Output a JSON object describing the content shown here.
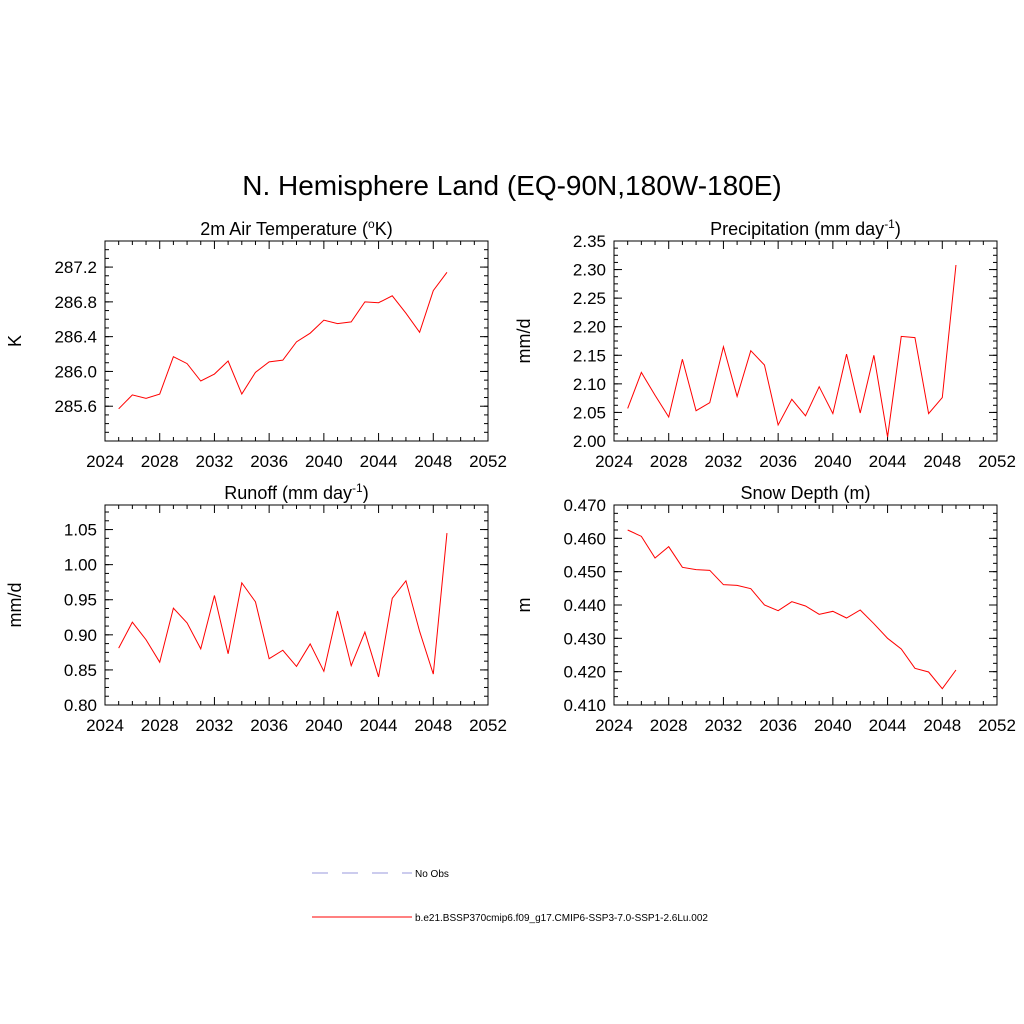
{
  "figure": {
    "title": "N. Hemisphere Land (EQ-90N,180W-180E)"
  },
  "legend": [
    {
      "label": "No Obs",
      "color": "#9999dd",
      "style": "dashed"
    },
    {
      "label": "b.e21.BSSP370cmip6.f09_g17.CMIP6-SSP3-7.0-SSP1-2.6Lu.002",
      "color": "#ff0000",
      "style": "solid"
    }
  ],
  "chart_data": [
    {
      "type": "line",
      "title": "2m Air Temperature (",
      "title_sup": "o",
      "title_after": "K)",
      "ylabel": "K",
      "xlim": [
        2024,
        2052
      ],
      "ylim": [
        285.2,
        287.5
      ],
      "xticks": [
        2024,
        2028,
        2032,
        2036,
        2040,
        2044,
        2048,
        2052
      ],
      "yticks": [
        285.6,
        286.0,
        286.4,
        286.8,
        287.2
      ],
      "ytick_labels": [
        "285.6",
        "286.0",
        "286.4",
        "286.8",
        "287.2"
      ],
      "x": [
        2025,
        2026,
        2027,
        2028,
        2029,
        2030,
        2031,
        2032,
        2033,
        2034,
        2035,
        2036,
        2037,
        2038,
        2039,
        2040,
        2041,
        2042,
        2043,
        2044,
        2045,
        2046,
        2047,
        2048,
        2049
      ],
      "series": [
        {
          "color": "#ff0000",
          "values": [
            285.57,
            285.73,
            285.69,
            285.74,
            286.17,
            286.09,
            285.89,
            285.97,
            286.12,
            285.74,
            285.99,
            286.11,
            286.13,
            286.34,
            286.44,
            286.59,
            286.55,
            286.57,
            286.8,
            286.79,
            286.87,
            286.67,
            286.45,
            286.93,
            287.14
          ]
        }
      ]
    },
    {
      "type": "line",
      "title": "Precipitation (mm day",
      "title_sup": "-1",
      "title_after": ")",
      "ylabel": "mm/d",
      "xlim": [
        2024,
        2052
      ],
      "ylim": [
        2.0,
        2.35
      ],
      "xticks": [
        2024,
        2028,
        2032,
        2036,
        2040,
        2044,
        2048,
        2052
      ],
      "yticks": [
        2.0,
        2.05,
        2.1,
        2.15,
        2.2,
        2.25,
        2.3,
        2.35
      ],
      "ytick_labels": [
        "2.00",
        "2.05",
        "2.10",
        "2.15",
        "2.20",
        "2.25",
        "2.30",
        "2.35"
      ],
      "x": [
        2025,
        2026,
        2027,
        2028,
        2029,
        2030,
        2031,
        2032,
        2033,
        2034,
        2035,
        2036,
        2037,
        2038,
        2039,
        2040,
        2041,
        2042,
        2043,
        2044,
        2045,
        2046,
        2047,
        2048,
        2049
      ],
      "series": [
        {
          "color": "#ff0000",
          "values": [
            2.057,
            2.12,
            2.08,
            2.042,
            2.143,
            2.053,
            2.067,
            2.165,
            2.078,
            2.158,
            2.133,
            2.028,
            2.073,
            2.044,
            2.095,
            2.048,
            2.152,
            2.049,
            2.15,
            2.007,
            2.183,
            2.181,
            2.048,
            2.076,
            2.308
          ]
        }
      ]
    },
    {
      "type": "line",
      "title": "Runoff (mm day",
      "title_sup": "-1",
      "title_after": ")",
      "ylabel": "mm/d",
      "xlim": [
        2024,
        2052
      ],
      "ylim": [
        0.8,
        1.085
      ],
      "xticks": [
        2024,
        2028,
        2032,
        2036,
        2040,
        2044,
        2048,
        2052
      ],
      "yticks": [
        0.8,
        0.85,
        0.9,
        0.95,
        1.0,
        1.05
      ],
      "ytick_labels": [
        "0.80",
        "0.85",
        "0.90",
        "0.95",
        "1.00",
        "1.05"
      ],
      "x": [
        2025,
        2026,
        2027,
        2028,
        2029,
        2030,
        2031,
        2032,
        2033,
        2034,
        2035,
        2036,
        2037,
        2038,
        2039,
        2040,
        2041,
        2042,
        2043,
        2044,
        2045,
        2046,
        2047,
        2048,
        2049
      ],
      "series": [
        {
          "color": "#ff0000",
          "values": [
            0.881,
            0.918,
            0.893,
            0.861,
            0.938,
            0.917,
            0.88,
            0.956,
            0.873,
            0.974,
            0.947,
            0.866,
            0.878,
            0.855,
            0.887,
            0.848,
            0.934,
            0.856,
            0.904,
            0.84,
            0.952,
            0.977,
            0.905,
            0.844,
            1.045
          ]
        }
      ]
    },
    {
      "type": "line",
      "title": "Snow Depth (m)",
      "title_sup": "",
      "title_after": "",
      "ylabel": "m",
      "xlim": [
        2024,
        2052
      ],
      "ylim": [
        0.41,
        0.47
      ],
      "xticks": [
        2024,
        2028,
        2032,
        2036,
        2040,
        2044,
        2048,
        2052
      ],
      "yticks": [
        0.41,
        0.42,
        0.43,
        0.44,
        0.45,
        0.46,
        0.47
      ],
      "ytick_labels": [
        "0.410",
        "0.420",
        "0.430",
        "0.440",
        "0.450",
        "0.460",
        "0.470"
      ],
      "x": [
        2025,
        2026,
        2027,
        2028,
        2029,
        2030,
        2031,
        2032,
        2033,
        2034,
        2035,
        2036,
        2037,
        2038,
        2039,
        2040,
        2041,
        2042,
        2043,
        2044,
        2045,
        2046,
        2047,
        2048,
        2049
      ],
      "series": [
        {
          "color": "#ff0000",
          "values": [
            0.4625,
            0.4606,
            0.4541,
            0.4575,
            0.4513,
            0.4506,
            0.4504,
            0.4461,
            0.4459,
            0.4449,
            0.44,
            0.4383,
            0.441,
            0.4397,
            0.4372,
            0.4381,
            0.4361,
            0.4385,
            0.4344,
            0.43,
            0.4268,
            0.421,
            0.4199,
            0.4149,
            0.4205
          ]
        }
      ]
    }
  ]
}
